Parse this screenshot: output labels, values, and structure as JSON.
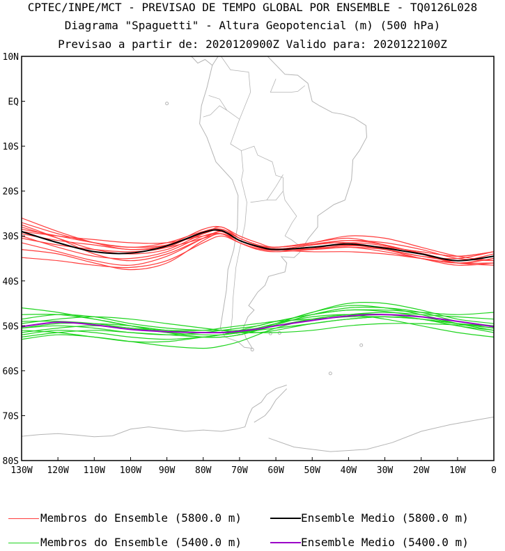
{
  "titles": {
    "line1": "CPTEC/INPE/MCT - PREVISAO DE TEMPO GLOBAL POR ENSEMBLE - TQ0126L028",
    "line2": "Diagrama \"Spaguetti\" - Altura Geopotencial (m) (500 hPa)",
    "line3": "Previsao a partir de: 2020120900Z  Valido para: 2020122100Z"
  },
  "legend": {
    "red_members": "Membros do Ensemble (5800.0 m)",
    "black_mean": "Ensemble Medio (5800.0 m)",
    "green_members": "Membros do Ensemble (5400.0 m)",
    "purple_mean": "Ensemble Medio (5400.0 m)"
  },
  "colors": {
    "red": "#ff3b3b",
    "black": "#000000",
    "green": "#1ed41e",
    "purple": "#9b00c8",
    "map": "#b4b4b4"
  },
  "chart_data": {
    "type": "line",
    "xlabel": "",
    "ylabel": "",
    "xlim": [
      -130,
      0
    ],
    "ylim": [
      -80,
      10
    ],
    "x_ticks": [
      {
        "v": -130,
        "label": "130W"
      },
      {
        "v": -120,
        "label": "120W"
      },
      {
        "v": -110,
        "label": "110W"
      },
      {
        "v": -100,
        "label": "100W"
      },
      {
        "v": -90,
        "label": "90W"
      },
      {
        "v": -80,
        "label": "80W"
      },
      {
        "v": -70,
        "label": "70W"
      },
      {
        "v": -60,
        "label": "60W"
      },
      {
        "v": -50,
        "label": "50W"
      },
      {
        "v": -40,
        "label": "40W"
      },
      {
        "v": -30,
        "label": "30W"
      },
      {
        "v": -20,
        "label": "20W"
      },
      {
        "v": -10,
        "label": "10W"
      },
      {
        "v": 0,
        "label": "0"
      }
    ],
    "y_ticks": [
      {
        "v": 10,
        "label": "10N"
      },
      {
        "v": 0,
        "label": "EQ"
      },
      {
        "v": -10,
        "label": "10S"
      },
      {
        "v": -20,
        "label": "20S"
      },
      {
        "v": -30,
        "label": "30S"
      },
      {
        "v": -40,
        "label": "40S"
      },
      {
        "v": -50,
        "label": "50S"
      },
      {
        "v": -60,
        "label": "60S"
      },
      {
        "v": -70,
        "label": "70S"
      },
      {
        "v": -80,
        "label": "80S"
      }
    ],
    "lon": [
      -130,
      -120,
      -110,
      -100,
      -90,
      -80,
      -75,
      -70,
      -65,
      -60,
      -50,
      -40,
      -30,
      -20,
      -10,
      0
    ],
    "series": [
      {
        "name": "Ensemble Medio (5800.0 m)",
        "color": "black",
        "values": [
          -29,
          -31.5,
          -33.5,
          -33.8,
          -32.2,
          -29.2,
          -28.8,
          -31,
          -32.3,
          -33,
          -32.5,
          -31.8,
          -32.7,
          -34,
          -35.5,
          -34.5
        ]
      },
      {
        "name": "Ensemble Medio (5400.0 m)",
        "color": "purple",
        "values": [
          -50.2,
          -49.2,
          -49.8,
          -50.8,
          -51.3,
          -51.5,
          -51.5,
          -51.2,
          -50.7,
          -50,
          -48.8,
          -47.8,
          -47.5,
          -48,
          -49,
          -50.2
        ]
      },
      {
        "color": "red",
        "values": [
          -28,
          -30.5,
          -33,
          -34,
          -33,
          -29.5,
          -28,
          -30.5,
          -32,
          -33,
          -32.8,
          -31.5,
          -32.2,
          -33.8,
          -35.5,
          -34
        ]
      },
      {
        "color": "red",
        "values": [
          -26,
          -29,
          -31.5,
          -33,
          -32,
          -28.5,
          -28,
          -30,
          -31.5,
          -32.5,
          -31.5,
          -30.5,
          -32,
          -34,
          -36,
          -35
        ]
      },
      {
        "color": "red",
        "values": [
          -30,
          -32.5,
          -34.5,
          -35,
          -33.5,
          -30,
          -29.5,
          -31.5,
          -33,
          -33.5,
          -33,
          -32.5,
          -33.5,
          -35,
          -36,
          -35
        ]
      },
      {
        "color": "red",
        "values": [
          -31.5,
          -33.5,
          -35.5,
          -36.5,
          -34.5,
          -30.5,
          -29,
          -31,
          -32.5,
          -33,
          -32,
          -31.5,
          -33,
          -35,
          -36.5,
          -36
        ]
      },
      {
        "color": "red",
        "values": [
          -27,
          -29.5,
          -31.5,
          -32.5,
          -31.5,
          -29,
          -29,
          -31,
          -32.5,
          -33,
          -32.5,
          -32,
          -33,
          -34.5,
          -35,
          -33.5
        ]
      },
      {
        "color": "red",
        "values": [
          -29.5,
          -31,
          -32,
          -33,
          -32.5,
          -30.5,
          -29.5,
          -31,
          -32.5,
          -32.8,
          -33,
          -32.5,
          -33,
          -34.5,
          -35.5,
          -34.5
        ]
      },
      {
        "color": "red",
        "values": [
          -33,
          -34,
          -36,
          -37.5,
          -36,
          -31,
          -29.5,
          -31.5,
          -32.8,
          -33.2,
          -32.5,
          -32,
          -32.5,
          -33.5,
          -34.5,
          -33.5
        ]
      },
      {
        "color": "red",
        "values": [
          -34.8,
          -35.5,
          -36.5,
          -37,
          -35.5,
          -31.5,
          -30,
          -31.5,
          -32.8,
          -33,
          -32,
          -31,
          -31.5,
          -33,
          -35,
          -35.5
        ]
      },
      {
        "color": "red",
        "values": [
          -28.5,
          -30,
          -31.5,
          -32.5,
          -32,
          -29.5,
          -28.5,
          -30.5,
          -32,
          -32.5,
          -31.5,
          -30,
          -30.5,
          -32.5,
          -34.5,
          -35.5
        ]
      },
      {
        "color": "red",
        "values": [
          -30.5,
          -32,
          -33,
          -33.5,
          -32.5,
          -29,
          -28.5,
          -30.5,
          -32,
          -33,
          -33.5,
          -33.5,
          -34,
          -35,
          -36,
          -36
        ]
      },
      {
        "color": "red",
        "values": [
          -29,
          -30,
          -30.8,
          -31.5,
          -31.5,
          -30,
          -29.5,
          -31,
          -32.5,
          -33,
          -32.8,
          -32.2,
          -32.5,
          -33.5,
          -34.5,
          -33.5
        ]
      },
      {
        "color": "red",
        "values": [
          -27.5,
          -30.5,
          -34,
          -35.5,
          -34,
          -30.5,
          -29,
          -30.5,
          -32,
          -32.5,
          -31.8,
          -31,
          -32,
          -34,
          -36,
          -36.5
        ]
      },
      {
        "color": "green",
        "values": [
          -50.5,
          -50,
          -50.5,
          -51.5,
          -52,
          -51.5,
          -51,
          -50.5,
          -50,
          -49,
          -47.5,
          -46.5,
          -46.8,
          -48,
          -49.5,
          -50.5
        ]
      },
      {
        "color": "green",
        "values": [
          -52,
          -51,
          -51.5,
          -52.5,
          -53,
          -52.5,
          -52,
          -51.5,
          -50.8,
          -49.8,
          -47.5,
          -46,
          -46,
          -47,
          -49,
          -50
        ]
      },
      {
        "color": "green",
        "values": [
          -48.5,
          -47.5,
          -48,
          -49.5,
          -50.5,
          -51,
          -51,
          -51,
          -50.5,
          -49.5,
          -47,
          -45,
          -45,
          -46.5,
          -48.5,
          -49.5
        ]
      },
      {
        "color": "green",
        "values": [
          -53,
          -52,
          -52.5,
          -53.5,
          -54.5,
          -55,
          -54.5,
          -53.5,
          -52,
          -50.5,
          -48.5,
          -47.5,
          -47.5,
          -48.5,
          -50,
          -51
        ]
      },
      {
        "color": "green",
        "values": [
          -49.5,
          -48.5,
          -48,
          -48.5,
          -49.5,
          -50.5,
          -51,
          -51.5,
          -51.5,
          -51,
          -49.5,
          -48.5,
          -48,
          -48.5,
          -49.5,
          -50.5
        ]
      },
      {
        "color": "green",
        "values": [
          -46,
          -47,
          -48.5,
          -50,
          -51,
          -51.5,
          -51.5,
          -51.5,
          -51,
          -50.5,
          -49.5,
          -48.5,
          -48,
          -48.5,
          -50,
          -51.5
        ]
      },
      {
        "color": "green",
        "values": [
          -51.5,
          -50.5,
          -50,
          -50.5,
          -51.5,
          -52,
          -52,
          -51.5,
          -50.5,
          -49.5,
          -48,
          -47.5,
          -48.5,
          -50,
          -51.5,
          -52.5
        ]
      },
      {
        "color": "green",
        "values": [
          -47.5,
          -47.5,
          -48.5,
          -50,
          -51.5,
          -52.5,
          -52.5,
          -52,
          -51,
          -50,
          -48.5,
          -47.5,
          -47,
          -47.5,
          -48,
          -48.5
        ]
      },
      {
        "color": "green",
        "values": [
          -50.5,
          -49.5,
          -49.5,
          -50,
          -51,
          -51.5,
          -51.5,
          -51.5,
          -51.5,
          -51.5,
          -51,
          -50,
          -49.5,
          -49.5,
          -49.8,
          -50
        ]
      },
      {
        "color": "green",
        "values": [
          -52.5,
          -51.5,
          -51,
          -51.5,
          -52,
          -52.5,
          -52.5,
          -52,
          -51,
          -49.5,
          -47,
          -45.5,
          -46,
          -47.5,
          -49.5,
          -51
        ]
      },
      {
        "color": "green",
        "values": [
          -49,
          -49,
          -49.5,
          -50.5,
          -51,
          -51,
          -50.5,
          -50,
          -49.5,
          -49,
          -48.5,
          -48,
          -48,
          -48.5,
          -49.5,
          -50
        ]
      },
      {
        "color": "green",
        "values": [
          -51,
          -51.5,
          -52.5,
          -53.5,
          -53.5,
          -52.5,
          -52,
          -51,
          -50,
          -49,
          -47.5,
          -46.5,
          -46.5,
          -47,
          -47.5,
          -47
        ]
      }
    ]
  }
}
